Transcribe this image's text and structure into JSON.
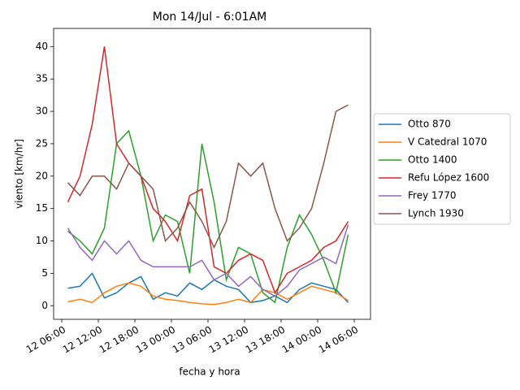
{
  "chart_data": {
    "type": "line",
    "title": "Mon 14/Jul - 6:01AM",
    "xlabel": "fecha y hora",
    "ylabel": "viento [km/hr]",
    "x": [
      "12 07:00",
      "12 09:00",
      "12 11:00",
      "12 13:00",
      "12 15:00",
      "12 17:00",
      "12 19:00",
      "12 21:00",
      "12 23:00",
      "13 01:00",
      "13 03:00",
      "13 05:00",
      "13 07:00",
      "13 09:00",
      "13 11:00",
      "13 13:00",
      "13 15:00",
      "13 17:00",
      "13 19:00",
      "13 21:00",
      "13 23:00",
      "14 01:00",
      "14 03:00",
      "14 05:00"
    ],
    "series": [
      {
        "name": "Otto 870",
        "color": "#1f77b4",
        "values": [
          2.7,
          3,
          5,
          1.2,
          2,
          3.5,
          4.5,
          1,
          2,
          1.5,
          3.5,
          2.5,
          4,
          3,
          2.5,
          0.5,
          0.8,
          1.5,
          0.5,
          2.5,
          3.5,
          3,
          2.5,
          0.5
        ]
      },
      {
        "name": "V Catedral 1070",
        "color": "#ff7f0e",
        "values": [
          0.6,
          1,
          0.5,
          2,
          3,
          3.5,
          3,
          1.5,
          1,
          0.8,
          0.5,
          0.3,
          0.2,
          0.5,
          1,
          0.5,
          2.5,
          2,
          1,
          2,
          3,
          2.5,
          2,
          0.8
        ]
      },
      {
        "name": "Otto 1400",
        "color": "#2ca02c",
        "values": [
          11.5,
          10,
          8,
          12,
          25,
          27,
          20,
          10,
          14,
          13,
          5,
          25,
          16,
          4,
          9,
          8,
          2,
          0.5,
          9,
          14,
          11,
          7,
          2,
          11
        ]
      },
      {
        "name": "Refu López 1600",
        "color": "#d62728",
        "values": [
          16,
          20,
          28,
          40,
          25,
          22,
          20,
          15,
          13,
          10,
          17,
          18,
          6,
          5,
          7,
          8,
          7,
          2,
          5,
          6,
          7,
          9,
          10,
          13
        ]
      },
      {
        "name": "Frey 1770",
        "color": "#9467bd",
        "values": [
          12,
          9,
          7,
          10,
          8,
          10,
          7,
          6,
          6,
          6,
          6,
          7,
          4,
          5,
          3,
          4.5,
          2.5,
          1.5,
          3,
          5.5,
          6.5,
          7.5,
          6.5,
          12.5
        ]
      },
      {
        "name": "Lynch 1930",
        "color": "#8c564b",
        "values": [
          19,
          17,
          20,
          20,
          18,
          22,
          20,
          18,
          10,
          12,
          16,
          13,
          9,
          13,
          22,
          20,
          22,
          15,
          10,
          12,
          15,
          22,
          30,
          31
        ]
      }
    ],
    "xlim": [
      "12 04:40",
      "14 08:40"
    ],
    "xticks": [
      "12 06:00",
      "12 12:00",
      "12 18:00",
      "13 00:00",
      "13 06:00",
      "13 12:00",
      "13 18:00",
      "14 00:00",
      "14 06:00"
    ],
    "ylim": [
      -2.1,
      42.8
    ],
    "yticks": [
      0,
      5,
      10,
      15,
      20,
      25,
      30,
      35,
      40
    ],
    "legend": "outside right"
  }
}
